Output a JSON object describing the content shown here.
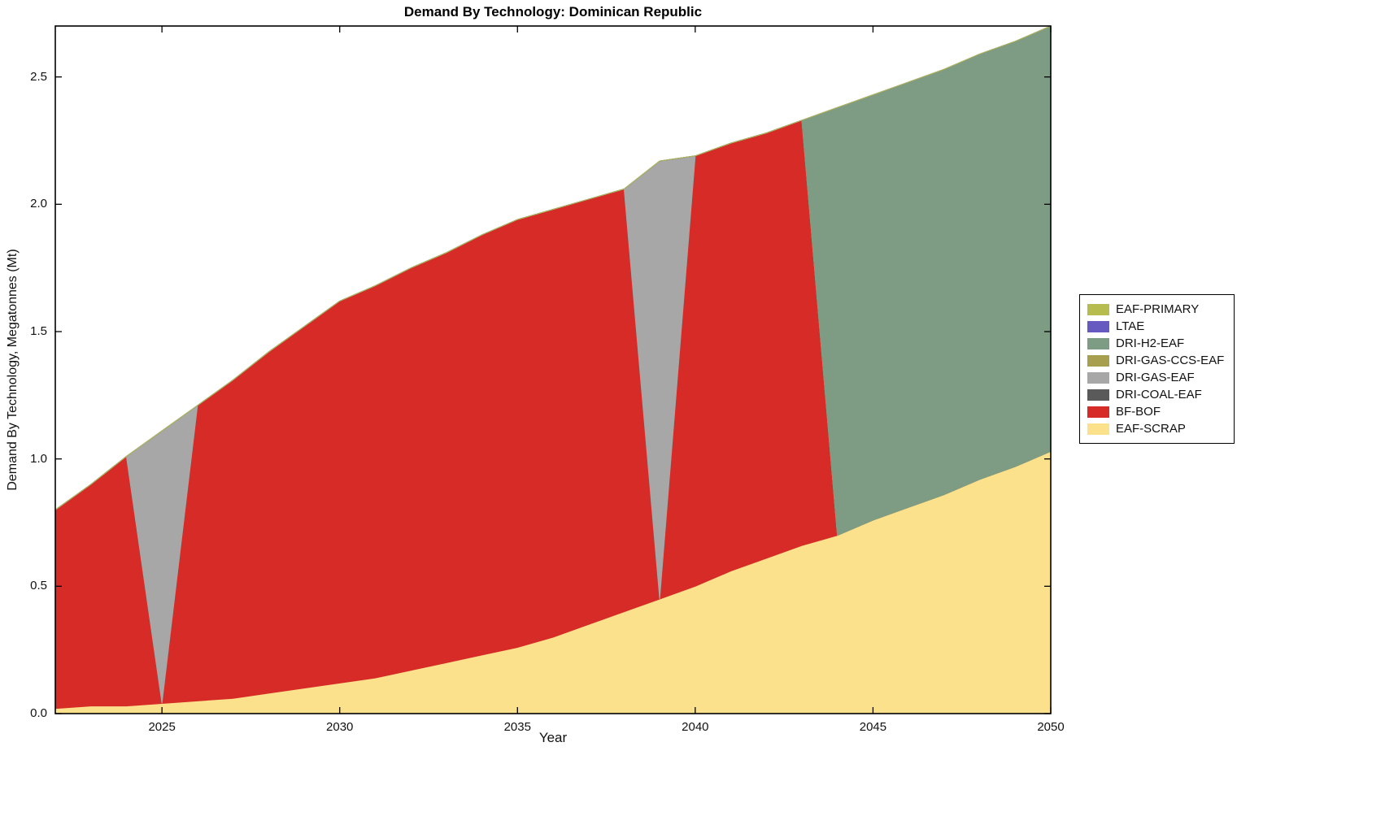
{
  "chart_data": {
    "type": "area",
    "stacked": true,
    "title": "Demand By Technology: Dominican Republic",
    "xlabel": "Year",
    "ylabel": "Demand By Technology, Megatonnes (Mt)",
    "xlim": [
      2022,
      2050
    ],
    "ylim": [
      0,
      2.7
    ],
    "grid": false,
    "legend_position": "outside-right",
    "xticks": [
      2025,
      2030,
      2035,
      2040,
      2045,
      2050
    ],
    "xtick_labels": [
      "2025",
      "2030",
      "2035",
      "2040",
      "2045",
      "2050"
    ],
    "yticks": [
      0.0,
      0.5,
      1.0,
      1.5,
      2.0,
      2.5
    ],
    "ytick_labels": [
      "0.0",
      "0.5",
      "1.0",
      "1.5",
      "2.0",
      "2.5"
    ],
    "years": [
      2022,
      2023,
      2024,
      2025,
      2026,
      2027,
      2028,
      2029,
      2030,
      2031,
      2032,
      2033,
      2034,
      2035,
      2036,
      2037,
      2038,
      2039,
      2040,
      2041,
      2042,
      2043,
      2044,
      2045,
      2046,
      2047,
      2048,
      2049,
      2050
    ],
    "series": [
      {
        "name": "EAF-SCRAP",
        "color": "#fbe18b",
        "values": [
          0.02,
          0.03,
          0.03,
          0.04,
          0.05,
          0.06,
          0.08,
          0.1,
          0.12,
          0.14,
          0.17,
          0.2,
          0.23,
          0.26,
          0.3,
          0.35,
          0.4,
          0.45,
          0.5,
          0.56,
          0.61,
          0.66,
          0.7,
          0.76,
          0.81,
          0.86,
          0.92,
          0.97,
          1.03
        ]
      },
      {
        "name": "BF-BOF",
        "color": "#d62b27",
        "values": [
          0.78,
          0.87,
          0.98,
          0.0,
          1.16,
          1.25,
          1.34,
          1.42,
          1.5,
          1.54,
          1.58,
          1.61,
          1.65,
          1.68,
          1.68,
          1.67,
          1.66,
          0.0,
          1.69,
          1.68,
          1.67,
          1.67,
          0.0,
          0.0,
          0.0,
          0.0,
          0.0,
          0.0,
          0.0
        ]
      },
      {
        "name": "DRI-COAL-EAF",
        "color": "#5a5a5a",
        "values": [
          0,
          0,
          0,
          0,
          0,
          0,
          0,
          0,
          0,
          0,
          0,
          0,
          0,
          0,
          0,
          0,
          0,
          0,
          0,
          0,
          0,
          0,
          0,
          0,
          0,
          0,
          0,
          0,
          0
        ]
      },
      {
        "name": "DRI-GAS-EAF",
        "color": "#a7a7a7",
        "values": [
          0,
          0,
          0,
          1.07,
          0,
          0,
          0,
          0,
          0,
          0,
          0,
          0,
          0,
          0,
          0,
          0,
          0,
          1.72,
          0,
          0,
          0,
          0,
          0,
          0,
          0,
          0,
          0,
          0,
          0
        ]
      },
      {
        "name": "DRI-GAS-CCS-EAF",
        "color": "#a89f4e",
        "values": [
          0,
          0,
          0,
          0,
          0,
          0,
          0,
          0,
          0,
          0,
          0,
          0,
          0,
          0,
          0,
          0,
          0,
          0,
          0,
          0,
          0,
          0,
          0,
          0,
          0,
          0,
          0,
          0,
          0
        ]
      },
      {
        "name": "DRI-H2-EAF",
        "color": "#7e9c83",
        "values": [
          0,
          0,
          0,
          0,
          0,
          0,
          0,
          0,
          0,
          0,
          0,
          0,
          0,
          0,
          0,
          0,
          0,
          0,
          0,
          0,
          0,
          0,
          1.68,
          1.67,
          1.67,
          1.67,
          1.67,
          1.67,
          1.67
        ]
      },
      {
        "name": "LTAE",
        "color": "#6659bf",
        "values": [
          0,
          0,
          0,
          0,
          0,
          0,
          0,
          0,
          0,
          0,
          0,
          0,
          0,
          0,
          0,
          0,
          0,
          0,
          0,
          0,
          0,
          0,
          0,
          0,
          0,
          0,
          0,
          0,
          0
        ]
      },
      {
        "name": "EAF-PRIMARY",
        "color": "#b6bd4e",
        "values": [
          0,
          0,
          0,
          0,
          0,
          0,
          0,
          0,
          0,
          0,
          0,
          0,
          0,
          0,
          0,
          0,
          0,
          0,
          0,
          0,
          0,
          0,
          0,
          0,
          0,
          0,
          0,
          0,
          0
        ]
      }
    ],
    "legend": [
      "EAF-PRIMARY",
      "LTAE",
      "DRI-H2-EAF",
      "DRI-GAS-CCS-EAF",
      "DRI-GAS-EAF",
      "DRI-COAL-EAF",
      "BF-BOF",
      "EAF-SCRAP"
    ]
  }
}
